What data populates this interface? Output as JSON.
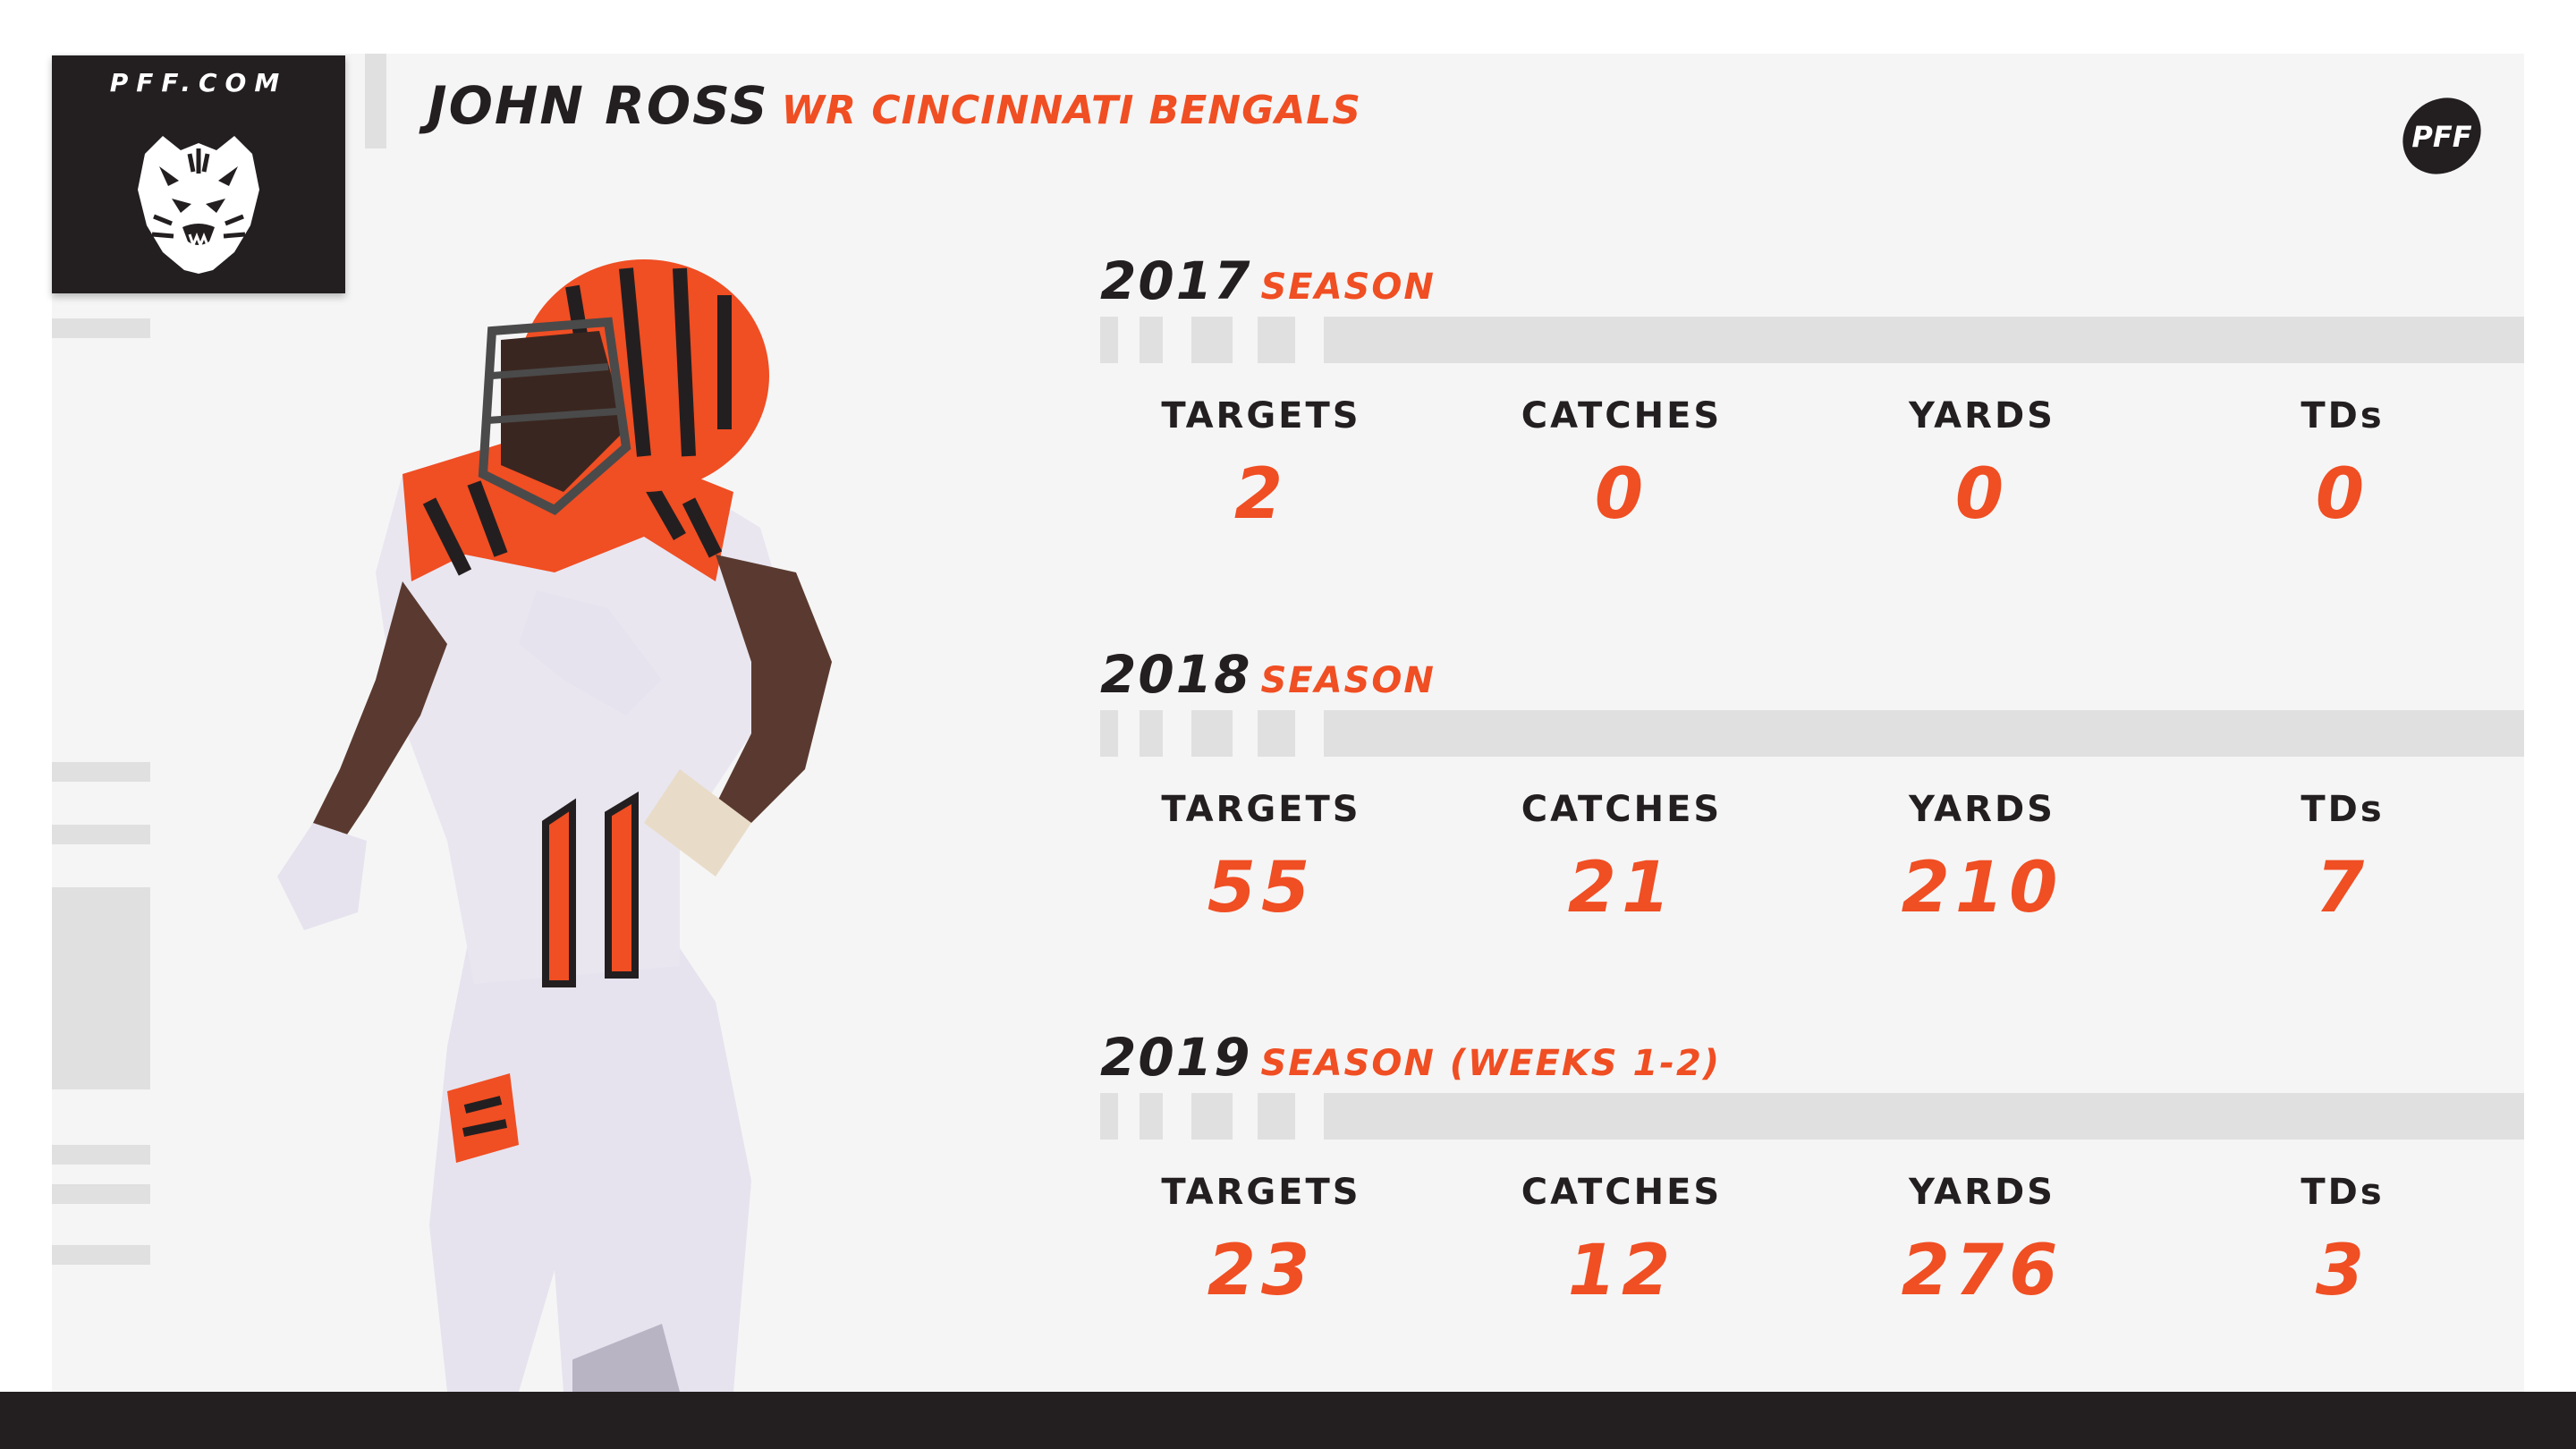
{
  "brand": {
    "site": "PFF.COM",
    "team_logo_icon": "bengals-tiger-icon",
    "pff_logo_icon": "pff-football-icon",
    "pff_logo_text": "PFF"
  },
  "header": {
    "player_name": "JOHN ROSS",
    "subtitle": "WR CINCINNATI BENGALS"
  },
  "colors": {
    "accent": "#f04e23",
    "dark": "#231f20",
    "panel": "#f5f5f5",
    "bar": "#e0e0e0"
  },
  "seasons": [
    {
      "year": "2017",
      "label": "SEASON",
      "stats": [
        {
          "label": "TARGETS",
          "value": "2"
        },
        {
          "label": "CATCHES",
          "value": "0"
        },
        {
          "label": "YARDS",
          "value": "0"
        },
        {
          "label": "TDs",
          "value": "0"
        }
      ]
    },
    {
      "year": "2018",
      "label": "SEASON",
      "stats": [
        {
          "label": "TARGETS",
          "value": "55"
        },
        {
          "label": "CATCHES",
          "value": "21"
        },
        {
          "label": "YARDS",
          "value": "210"
        },
        {
          "label": "TDs",
          "value": "7"
        }
      ]
    },
    {
      "year": "2019",
      "label": "SEASON (WEEKS 1-2)",
      "stats": [
        {
          "label": "TARGETS",
          "value": "23"
        },
        {
          "label": "CATCHES",
          "value": "12"
        },
        {
          "label": "YARDS",
          "value": "276"
        },
        {
          "label": "TDs",
          "value": "3"
        }
      ]
    }
  ],
  "player_image": "player-photo"
}
